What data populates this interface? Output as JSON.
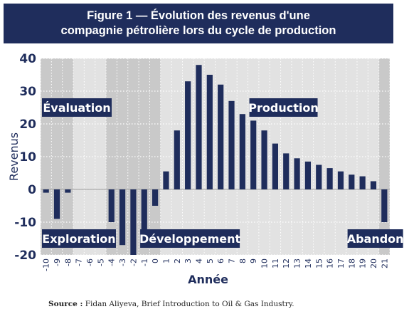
{
  "title": {
    "line1": "Figure 1 — Évolution des revenus d'une",
    "line2": "compagnie pétrolière lors du cycle de production"
  },
  "chart_data": {
    "type": "bar",
    "xlabel": "Année",
    "ylabel": "Revenus",
    "ylim": [
      -20,
      40
    ],
    "yticks": [
      -20,
      -10,
      0,
      10,
      20,
      30,
      40
    ],
    "grid": true,
    "categories": [
      -10,
      -9,
      -8,
      -7,
      -6,
      -5,
      -4,
      -3,
      -2,
      -1,
      0,
      1,
      2,
      3,
      4,
      5,
      6,
      7,
      8,
      9,
      10,
      11,
      12,
      13,
      14,
      15,
      16,
      17,
      18,
      19,
      20,
      21
    ],
    "values": [
      -1,
      -9,
      -1,
      0,
      0,
      0,
      -10,
      -17,
      -20,
      -17,
      -5,
      5.5,
      18,
      33,
      38,
      35,
      32,
      27,
      23,
      21,
      18,
      14,
      11,
      9.5,
      8.5,
      7.5,
      6.5,
      5.5,
      4.5,
      4,
      2.5,
      -10
    ],
    "bar_color": "#1f2d5c",
    "phases": [
      {
        "label": "Exploration",
        "start": -10,
        "end": -5
      },
      {
        "label": "Évaluation",
        "start": -8,
        "end": -5
      },
      {
        "label": "Développement",
        "start": -4,
        "end": 0
      },
      {
        "label": "Production",
        "start": 1,
        "end": 20
      },
      {
        "label": "Abandon",
        "start": 21,
        "end": 21
      }
    ]
  },
  "source": {
    "label": "Source :",
    "text": "Fidan Aliyeva, Brief Introduction to Oil & Gas Industry."
  },
  "colors": {
    "navy": "#1f2d5c",
    "band_dark": "#c9c9c9",
    "band_light": "#e2e2e2"
  }
}
